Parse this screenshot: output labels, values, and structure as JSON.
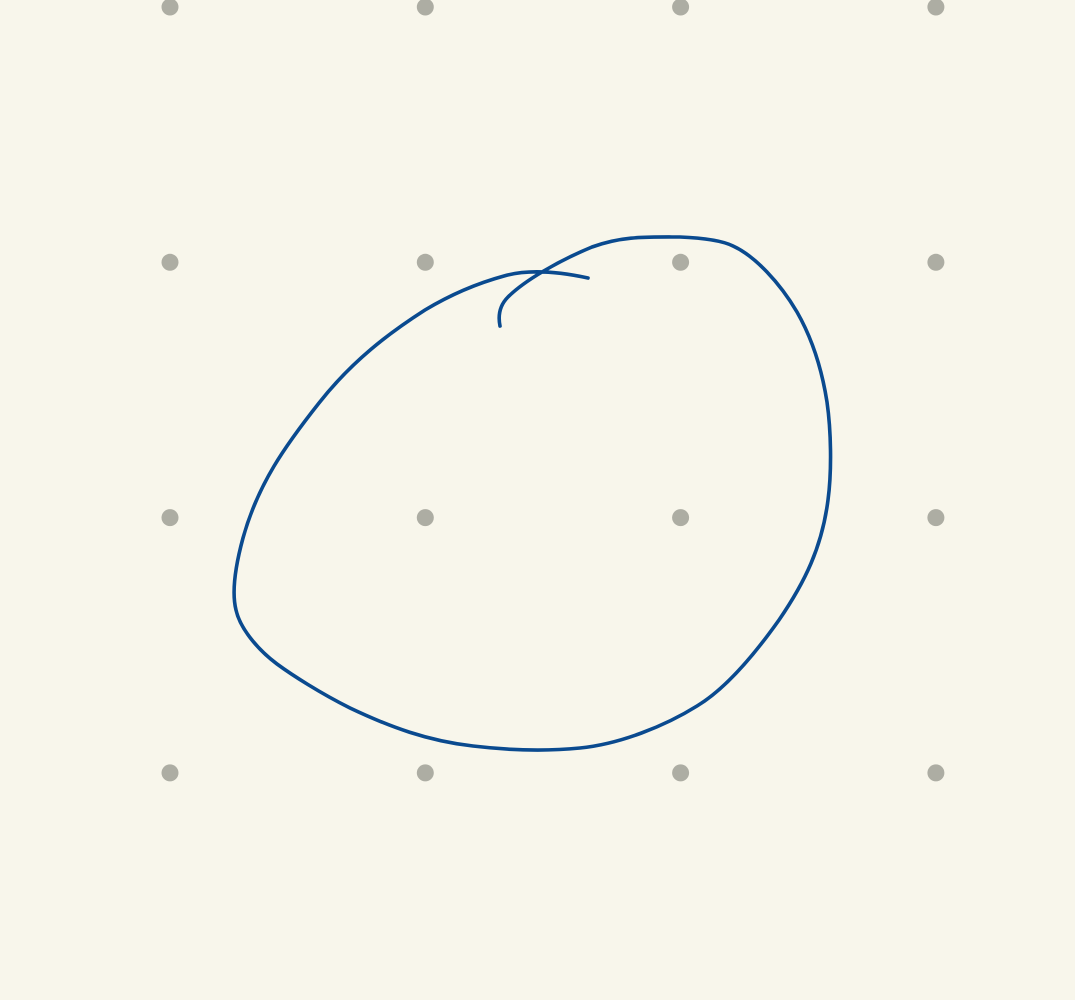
{
  "canvas": {
    "background_color": "#f8f6eb"
  },
  "grid": {
    "rows": 4,
    "cols": 4,
    "dot_color": "#adada3"
  },
  "drawing": {
    "stroke_color": "#0a4a8f",
    "stroke_shape": "closed-loop"
  }
}
